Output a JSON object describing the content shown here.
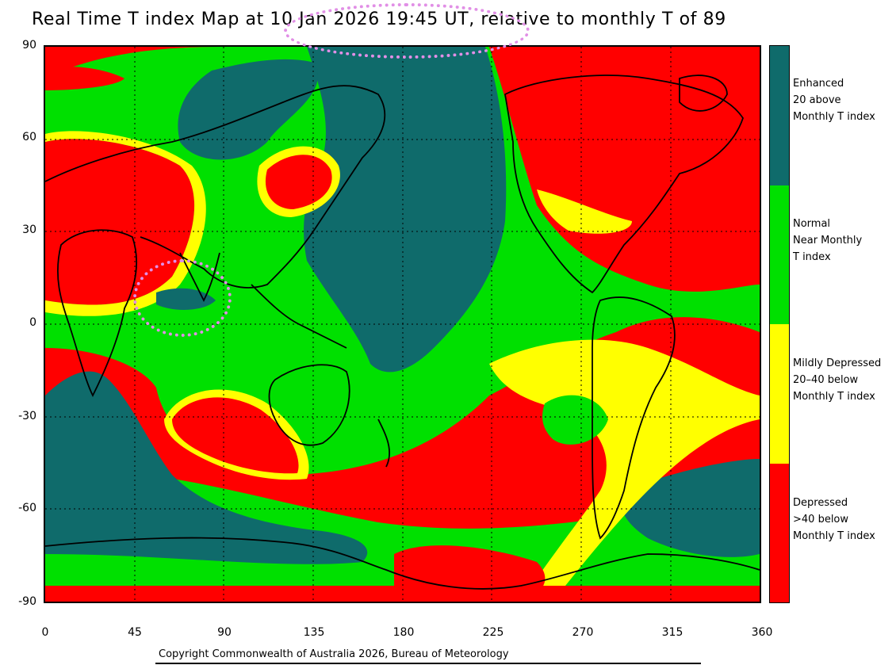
{
  "title": "Real Time T index Map at 10 Jan 2026 19:45 UT, relative to monthly T of 89",
  "map": {
    "y_axis_ticks": [
      "90",
      "60",
      "30",
      "0",
      "-30",
      "-60",
      "-90"
    ],
    "x_axis_ticks": [
      "0",
      "45",
      "90",
      "135",
      "180",
      "225",
      "270",
      "315",
      "360"
    ],
    "colors": {
      "enhanced": "#0f6b6b",
      "normal": "#00e000",
      "mildly_depressed": "#ffff00",
      "depressed": "#ff0000"
    }
  },
  "legend": {
    "enhanced": "Enhanced\n20 above\nMonthly T index",
    "normal": "Normal\nNear Monthly\nT index",
    "mildly_depressed": "Mildly Depressed\n20–40 below\nMonthly T index",
    "depressed": "Depressed\n>40 below\nMonthly T index"
  },
  "copyright": "Copyright Commonwealth of Australia 2026, Bureau of Meteorology"
}
